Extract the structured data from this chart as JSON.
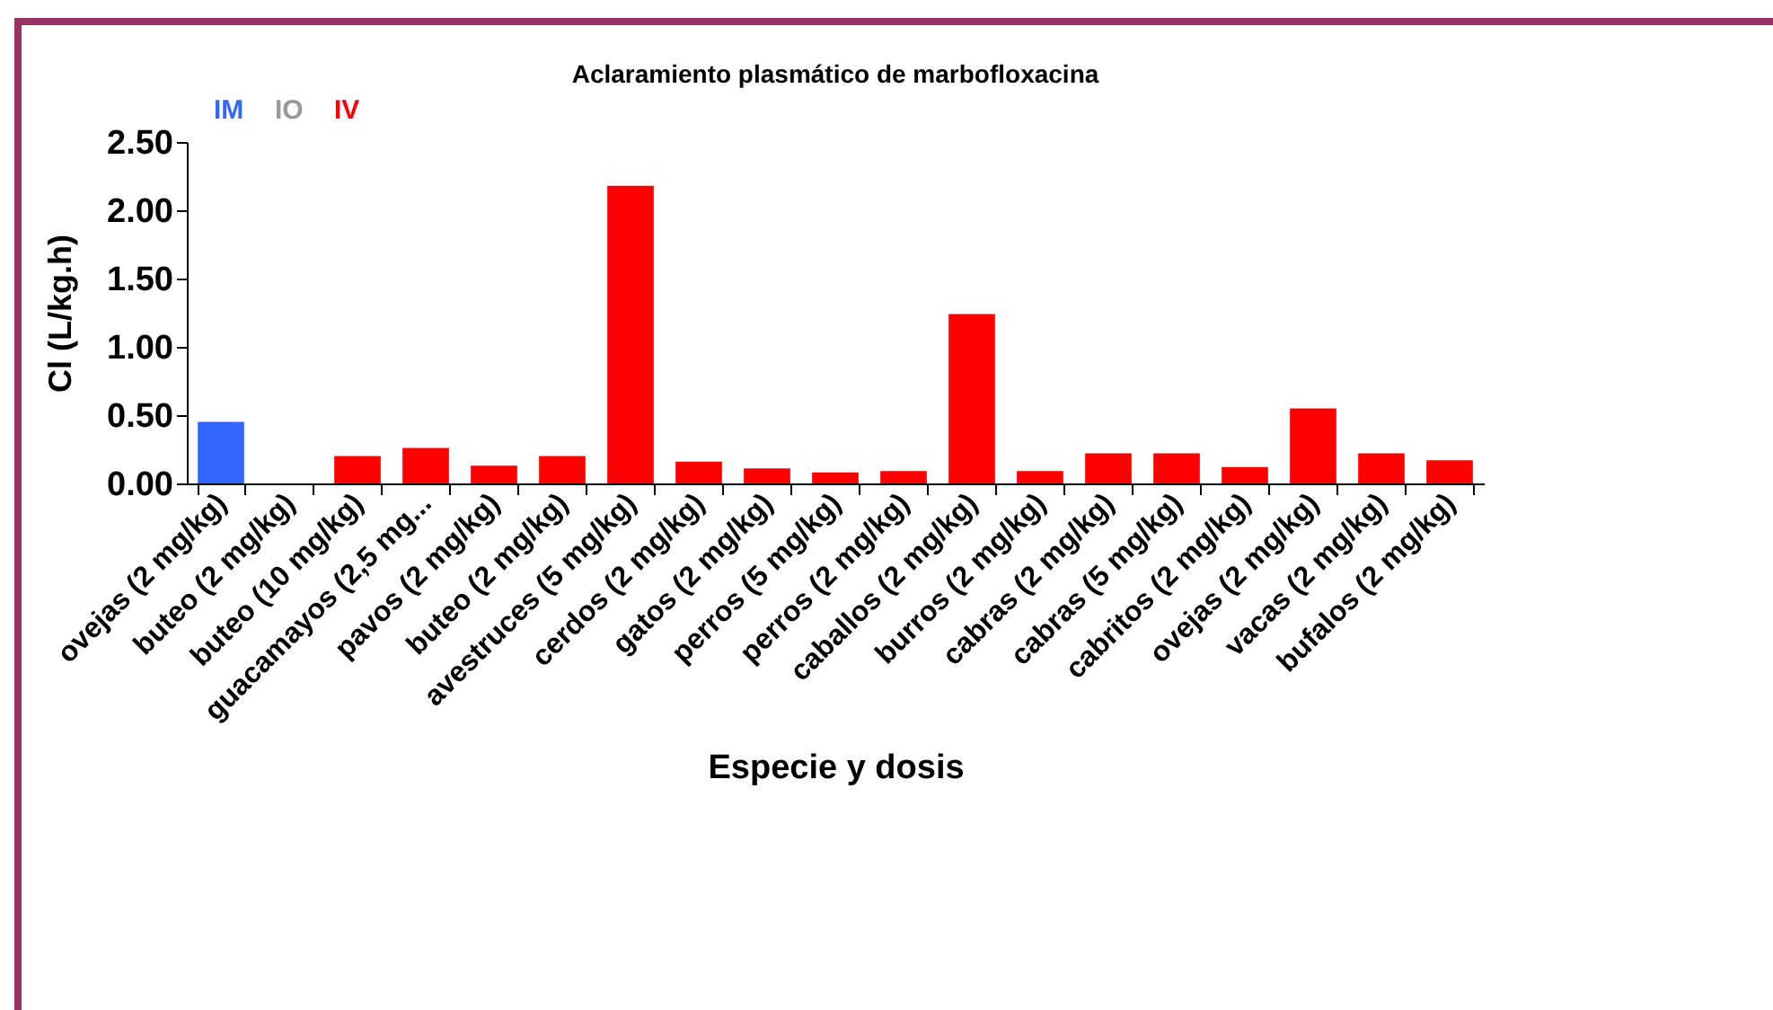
{
  "chart_data": {
    "type": "bar",
    "title": "Aclaramiento plasmático de marbofloxacina",
    "xlabel": "Especie y dosis",
    "ylabel": "Cl (L/kg.h)",
    "categories": [
      "ovejas (2 mg/kg)",
      "buteo (2 mg/kg)",
      "buteo (10 mg/kg)",
      "guacamayos (2,5 mg...",
      "pavos (2 mg/kg)",
      "buteo (2 mg/kg)",
      "avestruces (5 mg/kg)",
      "cerdos (2 mg/kg)",
      "gatos (2 mg/kg)",
      "perros (5 mg/kg)",
      "perros (2 mg/kg)",
      "caballos (2 mg/kg)",
      "burros (2 mg/kg)",
      "cabras (2 mg/kg)",
      "cabras (5 mg/kg)",
      "cabritos (2 mg/kg)",
      "ovejas (2 mg/kg)",
      "vacas (2 mg/kg)",
      "bufalos (2 mg/kg)"
    ],
    "series": [
      {
        "name": "IM",
        "color": "#3366ff",
        "values": [
          0.45,
          null,
          null,
          null,
          null,
          null,
          null,
          null,
          null,
          null,
          null,
          null,
          null,
          null,
          null,
          null,
          null,
          null,
          null
        ]
      },
      {
        "name": "IO",
        "color": "#999999",
        "values": [
          null,
          null,
          null,
          null,
          null,
          null,
          null,
          null,
          null,
          null,
          null,
          null,
          null,
          null,
          null,
          null,
          null,
          null,
          null
        ]
      },
      {
        "name": "IV",
        "color": "#ff0000",
        "values": [
          null,
          null,
          0.2,
          0.26,
          0.13,
          0.2,
          2.18,
          0.16,
          0.11,
          0.08,
          0.09,
          1.24,
          0.09,
          0.22,
          0.22,
          0.12,
          0.55,
          0.22,
          0.17
        ]
      }
    ],
    "ylim": [
      0,
      2.5
    ],
    "yticks": [
      {
        "value": 0,
        "label": "0.00"
      },
      {
        "value": 0.5,
        "label": "0.50"
      },
      {
        "value": 1,
        "label": "1.00"
      },
      {
        "value": 1.5,
        "label": "1.50"
      },
      {
        "value": 2,
        "label": "2.00"
      },
      {
        "value": 2.5,
        "label": "2.50"
      }
    ],
    "grid": false,
    "legend": "top"
  }
}
